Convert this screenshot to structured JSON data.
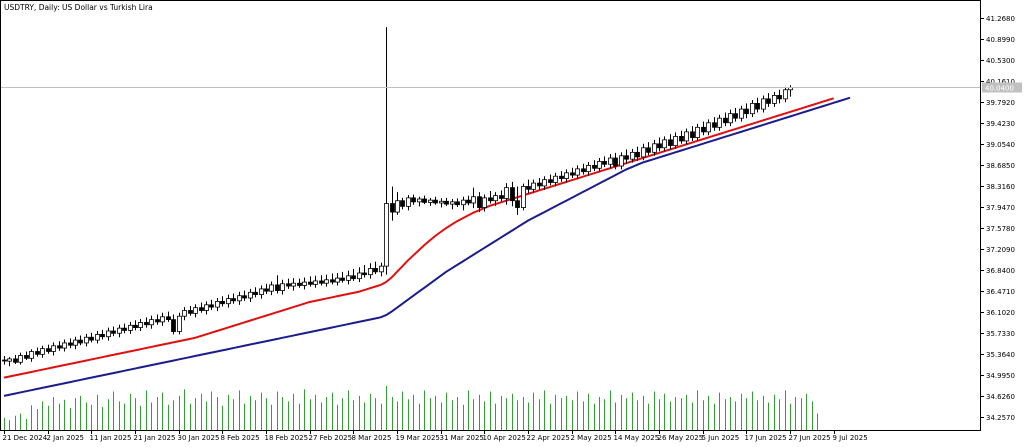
{
  "chart_data": {
    "type": "candlestick",
    "symbol_title": "USDTRY, Daily:  US Dollar vs Turkish Lira",
    "timeframe": "Daily",
    "current_price_label": "40.0400",
    "y_ticks": [
      41.268,
      40.899,
      40.53,
      40.161,
      39.792,
      39.423,
      39.054,
      38.685,
      38.316,
      37.947,
      37.578,
      37.209,
      36.84,
      36.471,
      36.102,
      35.733,
      35.364,
      34.995,
      34.626,
      34.257
    ],
    "y_tick_labels": [
      "41.2680",
      "40.8990",
      "40.5300",
      "40.1610",
      "39.7920",
      "39.4230",
      "39.0540",
      "38.6850",
      "38.3160",
      "37.9470",
      "37.5780",
      "37.2090",
      "36.8400",
      "36.4710",
      "36.1020",
      "35.7330",
      "35.3640",
      "34.9950",
      "34.6260",
      "34.2570"
    ],
    "ylim": [
      34.02,
      41.56
    ],
    "x_tick_labels": [
      "21 Dec 2024",
      "2 Jan 2025",
      "11 Jan 2025",
      "21 Jan 2025",
      "30 Jan 2025",
      "8 Feb 2025",
      "18 Feb 2025",
      "27 Feb 2025",
      "8 Mar 2025",
      "19 Mar 2025",
      "31 Mar 2025",
      "10 Apr 2025",
      "22 Apr 2025",
      "2 May 2025",
      "14 May 2025",
      "26 May 2025",
      "5 Jun 2025",
      "17 Jun 2025",
      "27 Jun 2025",
      "9 Jul 2025"
    ],
    "x_tick_index": [
      0,
      8,
      16,
      24,
      32,
      40,
      48,
      56,
      64,
      72,
      80,
      88,
      96,
      104,
      112,
      120,
      128,
      136,
      144,
      152
    ],
    "ohlc": [
      [
        35.25,
        35.32,
        35.17,
        35.24
      ],
      [
        35.23,
        35.3,
        35.14,
        35.27
      ],
      [
        35.27,
        35.34,
        35.18,
        35.21
      ],
      [
        35.21,
        35.38,
        35.17,
        35.33
      ],
      [
        35.33,
        35.4,
        35.25,
        35.28
      ],
      [
        35.28,
        35.44,
        35.22,
        35.4
      ],
      [
        35.4,
        35.47,
        35.31,
        35.35
      ],
      [
        35.35,
        35.5,
        35.29,
        35.45
      ],
      [
        35.45,
        35.52,
        35.36,
        35.4
      ],
      [
        35.4,
        35.56,
        35.33,
        35.5
      ],
      [
        35.5,
        35.58,
        35.41,
        35.46
      ],
      [
        35.46,
        35.61,
        35.4,
        35.55
      ],
      [
        35.55,
        35.63,
        35.46,
        35.51
      ],
      [
        35.51,
        35.66,
        35.44,
        35.6
      ],
      [
        35.6,
        35.68,
        35.51,
        35.55
      ],
      [
        35.55,
        35.71,
        35.49,
        35.65
      ],
      [
        35.65,
        35.73,
        35.56,
        35.6
      ],
      [
        35.6,
        35.76,
        35.54,
        35.7
      ],
      [
        35.7,
        35.78,
        35.61,
        35.66
      ],
      [
        35.66,
        35.82,
        35.59,
        35.76
      ],
      [
        35.76,
        35.84,
        35.67,
        35.72
      ],
      [
        35.72,
        35.87,
        35.65,
        35.81
      ],
      [
        35.81,
        35.89,
        35.72,
        35.77
      ],
      [
        35.77,
        35.92,
        35.71,
        35.86
      ],
      [
        35.86,
        35.95,
        35.77,
        35.82
      ],
      [
        35.82,
        35.97,
        35.76,
        35.91
      ],
      [
        35.91,
        36.0,
        35.82,
        35.87
      ],
      [
        35.87,
        36.03,
        35.8,
        35.96
      ],
      [
        35.96,
        36.05,
        35.87,
        35.92
      ],
      [
        35.92,
        36.08,
        35.85,
        36.01
      ],
      [
        36.01,
        36.1,
        35.92,
        35.96
      ],
      [
        35.96,
        36.05,
        35.7,
        35.75
      ],
      [
        35.75,
        36.08,
        35.7,
        36.02
      ],
      [
        36.02,
        36.18,
        35.95,
        36.12
      ],
      [
        36.12,
        36.2,
        36.03,
        36.07
      ],
      [
        36.07,
        36.23,
        36.0,
        36.17
      ],
      [
        36.17,
        36.26,
        36.08,
        36.12
      ],
      [
        36.12,
        36.28,
        36.05,
        36.22
      ],
      [
        36.22,
        36.31,
        36.13,
        36.18
      ],
      [
        36.18,
        36.34,
        36.11,
        36.28
      ],
      [
        36.28,
        36.37,
        36.19,
        36.24
      ],
      [
        36.24,
        36.4,
        36.17,
        36.33
      ],
      [
        36.33,
        36.42,
        36.24,
        36.29
      ],
      [
        36.29,
        36.45,
        36.22,
        36.38
      ],
      [
        36.38,
        36.47,
        36.29,
        36.34
      ],
      [
        36.34,
        36.5,
        36.27,
        36.44
      ],
      [
        36.44,
        36.53,
        36.35,
        36.4
      ],
      [
        36.4,
        36.56,
        36.33,
        36.5
      ],
      [
        36.5,
        36.59,
        36.41,
        36.46
      ],
      [
        36.46,
        36.63,
        36.39,
        36.57
      ],
      [
        36.57,
        36.74,
        36.42,
        36.47
      ],
      [
        36.47,
        36.66,
        36.4,
        36.59
      ],
      [
        36.59,
        36.68,
        36.5,
        36.55
      ],
      [
        36.55,
        36.69,
        36.47,
        36.6
      ],
      [
        36.6,
        36.68,
        36.52,
        36.56
      ],
      [
        36.56,
        36.7,
        36.49,
        36.62
      ],
      [
        36.62,
        36.72,
        36.54,
        36.58
      ],
      [
        36.58,
        36.73,
        36.52,
        36.64
      ],
      [
        36.64,
        36.74,
        36.56,
        36.6
      ],
      [
        36.6,
        36.75,
        36.54,
        36.66
      ],
      [
        36.66,
        36.77,
        36.58,
        36.62
      ],
      [
        36.62,
        36.78,
        36.56,
        36.69
      ],
      [
        36.69,
        36.8,
        36.61,
        36.65
      ],
      [
        36.65,
        36.82,
        36.58,
        36.73
      ],
      [
        36.73,
        36.85,
        36.64,
        36.68
      ],
      [
        36.68,
        36.88,
        36.62,
        36.78
      ],
      [
        36.78,
        36.92,
        36.7,
        36.75
      ],
      [
        36.75,
        36.95,
        36.68,
        36.86
      ],
      [
        36.86,
        36.98,
        36.76,
        36.8
      ],
      [
        36.8,
        36.96,
        36.72,
        36.9
      ],
      [
        36.9,
        41.1,
        36.75,
        38.0
      ],
      [
        38.0,
        38.3,
        37.7,
        37.85
      ],
      [
        37.85,
        38.2,
        37.8,
        38.05
      ],
      [
        38.05,
        38.1,
        37.9,
        37.95
      ],
      [
        37.95,
        38.15,
        37.88,
        38.1
      ],
      [
        38.1,
        38.16,
        37.98,
        38.03
      ],
      [
        38.03,
        38.12,
        37.95,
        38.08
      ],
      [
        38.08,
        38.14,
        37.99,
        38.02
      ],
      [
        38.02,
        38.1,
        37.96,
        38.06
      ],
      [
        38.06,
        38.12,
        37.98,
        38.01
      ],
      [
        38.01,
        38.09,
        37.93,
        38.04
      ],
      [
        38.04,
        38.1,
        37.96,
        37.99
      ],
      [
        37.99,
        38.08,
        37.9,
        38.03
      ],
      [
        38.03,
        38.09,
        37.94,
        37.98
      ],
      [
        37.98,
        38.12,
        37.88,
        38.06
      ],
      [
        38.06,
        38.14,
        37.97,
        38.01
      ],
      [
        38.01,
        38.28,
        37.92,
        38.12
      ],
      [
        38.12,
        38.2,
        37.85,
        37.93
      ],
      [
        37.93,
        38.16,
        37.86,
        38.1
      ],
      [
        38.1,
        38.22,
        38.0,
        38.05
      ],
      [
        38.05,
        38.2,
        37.96,
        38.14
      ],
      [
        38.14,
        38.23,
        38.04,
        38.09
      ],
      [
        38.09,
        38.36,
        37.98,
        38.28
      ],
      [
        38.28,
        38.38,
        37.95,
        38.05
      ],
      [
        38.05,
        38.3,
        37.8,
        37.93
      ],
      [
        37.93,
        38.35,
        37.88,
        38.3
      ],
      [
        38.3,
        38.42,
        38.18,
        38.25
      ],
      [
        38.25,
        38.42,
        38.18,
        38.36
      ],
      [
        38.36,
        38.45,
        38.25,
        38.31
      ],
      [
        38.31,
        38.48,
        38.24,
        38.42
      ],
      [
        38.42,
        38.51,
        38.32,
        38.37
      ],
      [
        38.37,
        38.54,
        38.3,
        38.48
      ],
      [
        38.48,
        38.57,
        38.38,
        38.44
      ],
      [
        38.44,
        38.6,
        38.37,
        38.54
      ],
      [
        38.54,
        38.63,
        38.45,
        38.5
      ],
      [
        38.5,
        38.67,
        38.43,
        38.61
      ],
      [
        38.61,
        38.7,
        38.51,
        38.56
      ],
      [
        38.56,
        38.73,
        38.49,
        38.67
      ],
      [
        38.67,
        38.76,
        38.57,
        38.62
      ],
      [
        38.62,
        38.8,
        38.55,
        38.74
      ],
      [
        38.74,
        38.83,
        38.64,
        38.69
      ],
      [
        38.69,
        38.87,
        38.62,
        38.8
      ],
      [
        38.8,
        38.89,
        38.6,
        38.66
      ],
      [
        38.66,
        38.9,
        38.6,
        38.84
      ],
      [
        38.84,
        38.95,
        38.7,
        38.78
      ],
      [
        38.78,
        38.96,
        38.72,
        38.9
      ],
      [
        38.9,
        39.0,
        38.75,
        38.82
      ],
      [
        38.82,
        39.05,
        38.76,
        38.98
      ],
      [
        38.98,
        39.08,
        38.85,
        38.9
      ],
      [
        38.9,
        39.12,
        38.84,
        39.05
      ],
      [
        39.05,
        39.16,
        38.92,
        38.98
      ],
      [
        38.98,
        39.18,
        38.92,
        39.12
      ],
      [
        39.12,
        39.22,
        38.95,
        39.02
      ],
      [
        39.02,
        39.25,
        38.96,
        39.18
      ],
      [
        39.18,
        39.28,
        39.05,
        39.1
      ],
      [
        39.1,
        39.32,
        39.04,
        39.26
      ],
      [
        39.26,
        39.36,
        39.1,
        39.16
      ],
      [
        39.16,
        39.4,
        39.1,
        39.34
      ],
      [
        39.34,
        39.44,
        39.2,
        39.26
      ],
      [
        39.26,
        39.48,
        39.2,
        39.42
      ],
      [
        39.42,
        39.52,
        39.28,
        39.34
      ],
      [
        39.34,
        39.56,
        39.28,
        39.5
      ],
      [
        39.5,
        39.6,
        39.36,
        39.42
      ],
      [
        39.42,
        39.65,
        39.36,
        39.58
      ],
      [
        39.58,
        39.68,
        39.44,
        39.5
      ],
      [
        39.5,
        39.72,
        39.44,
        39.66
      ],
      [
        39.66,
        39.76,
        39.5,
        39.58
      ],
      [
        39.58,
        39.82,
        39.52,
        39.76
      ],
      [
        39.76,
        39.86,
        39.6,
        39.66
      ],
      [
        39.66,
        39.9,
        39.6,
        39.84
      ],
      [
        39.84,
        39.94,
        39.7,
        39.76
      ],
      [
        39.76,
        39.96,
        39.7,
        39.9
      ],
      [
        39.9,
        40.0,
        39.76,
        39.84
      ],
      [
        39.84,
        40.05,
        39.78,
        40.0
      ],
      [
        40.0,
        40.08,
        39.88,
        40.04
      ]
    ],
    "ma_fast": [
      34.94,
      34.96,
      34.98,
      35.0,
      35.02,
      35.04,
      35.06,
      35.08,
      35.1,
      35.12,
      35.14,
      35.16,
      35.18,
      35.2,
      35.22,
      35.24,
      35.26,
      35.28,
      35.3,
      35.32,
      35.34,
      35.36,
      35.38,
      35.4,
      35.42,
      35.44,
      35.46,
      35.48,
      35.5,
      35.52,
      35.54,
      35.56,
      35.58,
      35.6,
      35.62,
      35.64,
      35.67,
      35.7,
      35.73,
      35.76,
      35.79,
      35.82,
      35.85,
      35.88,
      35.91,
      35.94,
      35.97,
      36.0,
      36.03,
      36.06,
      36.09,
      36.12,
      36.15,
      36.18,
      36.21,
      36.24,
      36.27,
      36.29,
      36.31,
      36.33,
      36.35,
      36.37,
      36.39,
      36.41,
      36.43,
      36.45,
      36.48,
      36.51,
      36.54,
      36.57,
      36.62,
      36.7,
      36.8,
      36.9,
      37.0,
      37.09,
      37.18,
      37.27,
      37.35,
      37.43,
      37.5,
      37.57,
      37.63,
      37.69,
      37.74,
      37.79,
      37.84,
      37.88,
      37.92,
      37.96,
      37.99,
      38.02,
      38.05,
      38.08,
      38.11,
      38.14,
      38.17,
      38.2,
      38.23,
      38.26,
      38.29,
      38.32,
      38.35,
      38.38,
      38.41,
      38.44,
      38.47,
      38.5,
      38.53,
      38.56,
      38.59,
      38.62,
      38.65,
      38.68,
      38.71,
      38.74,
      38.77,
      38.8,
      38.83,
      38.86,
      38.89,
      38.92,
      38.95,
      38.98,
      39.01,
      39.04,
      39.07,
      39.1,
      39.13,
      39.16,
      39.19,
      39.22,
      39.25,
      39.28,
      39.31,
      39.34,
      39.37,
      39.4,
      39.43,
      39.46,
      39.49,
      39.52,
      39.55,
      39.58,
      39.61,
      39.64,
      39.67,
      39.7,
      39.73,
      39.76,
      39.79,
      39.82,
      39.85
    ],
    "ma_slow": [
      34.62,
      34.64,
      34.66,
      34.68,
      34.7,
      34.72,
      34.74,
      34.76,
      34.78,
      34.8,
      34.82,
      34.84,
      34.86,
      34.88,
      34.9,
      34.92,
      34.94,
      34.96,
      34.98,
      35.0,
      35.02,
      35.04,
      35.06,
      35.08,
      35.1,
      35.12,
      35.14,
      35.16,
      35.18,
      35.2,
      35.22,
      35.24,
      35.26,
      35.28,
      35.3,
      35.32,
      35.34,
      35.36,
      35.38,
      35.4,
      35.42,
      35.44,
      35.46,
      35.48,
      35.5,
      35.52,
      35.54,
      35.56,
      35.58,
      35.6,
      35.62,
      35.64,
      35.66,
      35.68,
      35.7,
      35.72,
      35.74,
      35.76,
      35.78,
      35.8,
      35.82,
      35.84,
      35.86,
      35.88,
      35.9,
      35.92,
      35.94,
      35.96,
      35.98,
      36.0,
      36.04,
      36.1,
      36.17,
      36.24,
      36.31,
      36.38,
      36.45,
      36.52,
      36.59,
      36.66,
      36.73,
      36.8,
      36.86,
      36.92,
      36.98,
      37.04,
      37.1,
      37.16,
      37.22,
      37.28,
      37.34,
      37.4,
      37.46,
      37.52,
      37.58,
      37.64,
      37.7,
      37.75,
      37.8,
      37.85,
      37.9,
      37.95,
      38.0,
      38.05,
      38.1,
      38.15,
      38.2,
      38.25,
      38.3,
      38.35,
      38.4,
      38.45,
      38.5,
      38.55,
      38.6,
      38.64,
      38.68,
      38.72,
      38.75,
      38.78,
      38.81,
      38.84,
      38.87,
      38.9,
      38.93,
      38.96,
      38.99,
      39.02,
      39.05,
      39.08,
      39.11,
      39.14,
      39.17,
      39.2,
      39.23,
      39.26,
      39.29,
      39.32,
      39.35,
      39.38,
      39.41,
      39.44,
      39.47,
      39.5,
      39.53,
      39.56,
      39.59,
      39.62,
      39.65,
      39.68,
      39.71,
      39.74,
      39.77,
      39.8,
      39.83,
      39.86
    ],
    "volume": [
      22,
      18,
      26,
      30,
      20,
      45,
      38,
      52,
      44,
      60,
      48,
      55,
      40,
      58,
      62,
      50,
      46,
      64,
      42,
      56,
      70,
      52,
      48,
      66,
      58,
      44,
      72,
      50,
      60,
      68,
      46,
      54,
      62,
      74,
      48,
      58,
      66,
      52,
      70,
      60,
      44,
      64,
      56,
      72,
      48,
      62,
      54,
      68,
      58,
      46,
      70,
      60,
      52,
      66,
      48,
      74,
      56,
      64,
      50,
      60,
      68,
      46,
      58,
      72,
      54,
      62,
      50,
      66,
      58,
      48,
      80,
      60,
      52,
      70,
      56,
      64,
      48,
      72,
      58,
      62,
      50,
      68,
      54,
      60,
      46,
      72,
      56,
      64,
      52,
      70,
      48,
      62,
      58,
      66,
      54,
      60,
      50,
      68,
      56,
      72,
      48,
      64,
      58,
      62,
      54,
      70,
      52,
      66,
      48,
      60,
      56,
      72,
      50,
      64,
      58,
      68,
      54,
      62,
      48,
      70,
      56,
      66,
      52,
      60,
      58,
      64,
      50,
      72,
      54,
      62,
      48,
      68,
      56,
      60,
      52,
      66,
      58,
      70,
      54,
      62,
      50,
      64,
      56,
      72,
      48,
      60,
      58,
      66,
      52,
      30
    ]
  }
}
